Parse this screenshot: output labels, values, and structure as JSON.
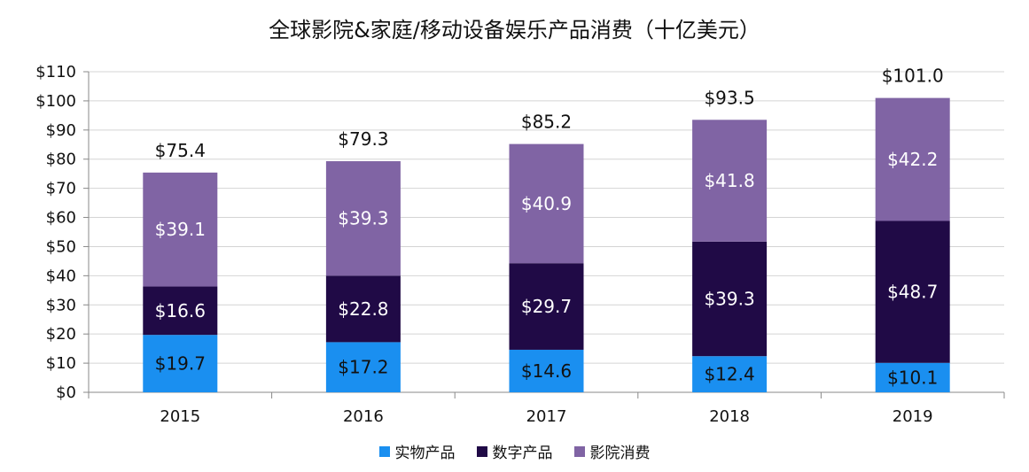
{
  "chart_data": {
    "type": "bar",
    "stacked": true,
    "title": "全球影院&家庭/移动设备娱乐产品消费（十亿美元）",
    "categories": [
      "2015",
      "2016",
      "2017",
      "2018",
      "2019"
    ],
    "series": [
      {
        "name": "实物产品",
        "color": "#1a8ff0",
        "label_color": "#111111",
        "values": [
          19.7,
          17.2,
          14.6,
          12.4,
          10.1
        ],
        "labels": [
          "$19.7",
          "$17.2",
          "$14.6",
          "$12.4",
          "$10.1"
        ]
      },
      {
        "name": "数字产品",
        "color": "#200a46",
        "label_color": "#ffffff",
        "values": [
          16.6,
          22.8,
          29.7,
          39.3,
          48.7
        ],
        "labels": [
          "$16.6",
          "$22.8",
          "$29.7",
          "$39.3",
          "$48.7"
        ]
      },
      {
        "name": "影院消费",
        "color": "#8064a4",
        "label_color": "#ffffff",
        "values": [
          39.1,
          39.3,
          40.9,
          41.8,
          42.2
        ],
        "labels": [
          "$39.1",
          "$39.3",
          "$40.9",
          "$41.8",
          "$42.2"
        ]
      }
    ],
    "totals": [
      75.4,
      79.3,
      85.2,
      93.5,
      101.0
    ],
    "total_labels": [
      "$75.4",
      "$79.3",
      "$85.2",
      "$93.5",
      "$101.0"
    ],
    "ylim": [
      0,
      110
    ],
    "yticks": [
      0,
      10,
      20,
      30,
      40,
      50,
      60,
      70,
      80,
      90,
      100,
      110
    ],
    "ytick_labels": [
      "$0",
      "$10",
      "$20",
      "$30",
      "$40",
      "$50",
      "$60",
      "$70",
      "$80",
      "$90",
      "$100",
      "$110"
    ],
    "xlabel": "",
    "ylabel": "",
    "grid": true,
    "legend_position": "bottom"
  }
}
